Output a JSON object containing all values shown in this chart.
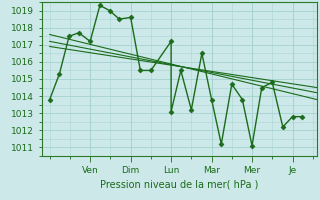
{
  "xlabel": "Pression niveau de la mer( hPa )",
  "bg_color": "#cce8e8",
  "grid_color": "#aad4d4",
  "line_color": "#1a6b1a",
  "spine_color": "#2a7a2a",
  "ylim": [
    1010.5,
    1019.5
  ],
  "yticks": [
    1011,
    1012,
    1013,
    1014,
    1015,
    1016,
    1017,
    1018,
    1019
  ],
  "day_labels": [
    "Ven",
    "Dim",
    "Lun",
    "Mar",
    "Mer",
    "Je"
  ],
  "day_positions": [
    2.5,
    5.0,
    7.5,
    10.0,
    12.5,
    15.0
  ],
  "xlim": [
    -0.5,
    16.5
  ],
  "series1_x": [
    0,
    0.6,
    1.2,
    1.8,
    2.5,
    3.1,
    3.7,
    4.3,
    5.0,
    5.6,
    6.25,
    7.5,
    7.5,
    8.1,
    8.75,
    9.4,
    10.0,
    10.6,
    11.25,
    11.9,
    12.5,
    13.1,
    13.75,
    14.4,
    15.0,
    15.6
  ],
  "series1_y": [
    1013.8,
    1015.3,
    1017.5,
    1017.7,
    1017.2,
    1019.3,
    1019.0,
    1018.5,
    1018.6,
    1015.5,
    1015.5,
    1017.2,
    1013.1,
    1015.5,
    1013.2,
    1016.5,
    1013.8,
    1011.2,
    1014.7,
    1013.8,
    1011.1,
    1014.5,
    1014.8,
    1012.2,
    1012.8,
    1012.8
  ],
  "trend1_x": [
    0,
    16.5
  ],
  "trend1_y": [
    1017.6,
    1013.8
  ],
  "trend2_x": [
    0,
    16.5
  ],
  "trend2_y": [
    1017.2,
    1014.2
  ],
  "trend3_x": [
    0,
    16.5
  ],
  "trend3_y": [
    1016.9,
    1014.5
  ],
  "sep_color": "#3a8a3a",
  "sep_positions": [
    2.5,
    5.0,
    7.5,
    10.0,
    12.5,
    15.0
  ]
}
